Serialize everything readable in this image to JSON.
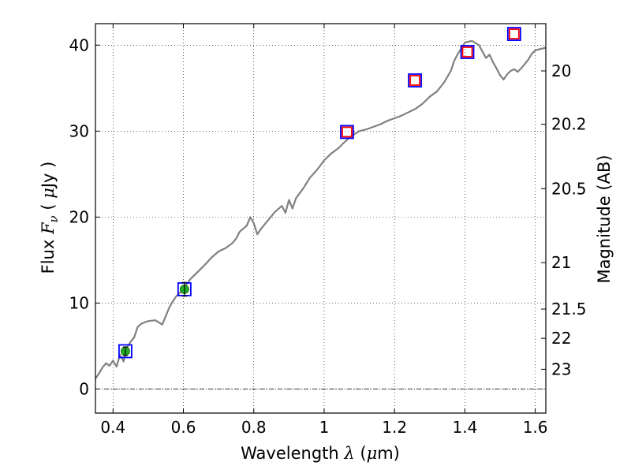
{
  "chart_data": {
    "type": "line",
    "xlabel": "Wavelength  λ (μm)",
    "ylabel": "Flux  F_ν  ( μJy )",
    "y2label": "Magnitude (AB)",
    "xlim": [
      0.35,
      1.63
    ],
    "ylim": [
      -2.8,
      42.5
    ],
    "x_ticks": [
      0.4,
      0.6,
      0.8,
      1.0,
      1.2,
      1.4,
      1.6
    ],
    "x_tick_labels": [
      "0.4",
      "0.6",
      "0.8",
      "1",
      "1.2",
      "1.4",
      "1.6"
    ],
    "y_ticks": [
      0,
      10,
      20,
      30,
      40
    ],
    "y_tick_labels": [
      "0",
      "10",
      "20",
      "30",
      "40"
    ],
    "y2_ticks": [
      {
        "label": "20",
        "flux": 37.0
      },
      {
        "label": "20.2",
        "flux": 30.8
      },
      {
        "label": "20.5",
        "flux": 23.3
      },
      {
        "label": "21",
        "flux": 14.7
      },
      {
        "label": "21.5",
        "flux": 9.3
      },
      {
        "label": "22",
        "flux": 5.9
      },
      {
        "label": "23",
        "flux": 2.3
      }
    ],
    "grid": true,
    "zero_line": true,
    "spectrum": {
      "color": "#808080",
      "x": [
        0.35,
        0.36,
        0.37,
        0.38,
        0.39,
        0.4,
        0.41,
        0.42,
        0.43,
        0.44,
        0.45,
        0.46,
        0.47,
        0.48,
        0.5,
        0.52,
        0.54,
        0.55,
        0.56,
        0.57,
        0.58,
        0.6,
        0.62,
        0.64,
        0.66,
        0.68,
        0.7,
        0.72,
        0.74,
        0.75,
        0.76,
        0.78,
        0.79,
        0.8,
        0.81,
        0.82,
        0.84,
        0.86,
        0.88,
        0.89,
        0.9,
        0.91,
        0.92,
        0.94,
        0.96,
        0.98,
        1.0,
        1.02,
        1.04,
        1.06,
        1.08,
        1.1,
        1.12,
        1.14,
        1.16,
        1.18,
        1.2,
        1.22,
        1.24,
        1.26,
        1.28,
        1.3,
        1.32,
        1.34,
        1.36,
        1.37,
        1.38,
        1.39,
        1.4,
        1.42,
        1.44,
        1.46,
        1.47,
        1.48,
        1.49,
        1.5,
        1.51,
        1.52,
        1.53,
        1.54,
        1.55,
        1.56,
        1.57,
        1.58,
        1.59,
        1.6,
        1.62,
        1.63
      ],
      "y": [
        1.2,
        1.8,
        2.5,
        3.0,
        2.7,
        3.3,
        2.6,
        4.0,
        3.2,
        4.8,
        5.5,
        6.0,
        7.2,
        7.6,
        7.9,
        8.0,
        7.5,
        8.5,
        9.5,
        10.2,
        10.8,
        11.6,
        12.8,
        13.6,
        14.4,
        15.3,
        16.0,
        16.4,
        17.0,
        17.5,
        18.3,
        19.0,
        20.0,
        19.3,
        18.0,
        18.6,
        19.6,
        20.6,
        21.3,
        20.5,
        22.0,
        21.0,
        22.2,
        23.3,
        24.6,
        25.5,
        26.6,
        27.4,
        28.0,
        28.8,
        29.5,
        30.0,
        30.2,
        30.5,
        30.8,
        31.2,
        31.5,
        31.8,
        32.2,
        32.6,
        33.2,
        34.0,
        34.6,
        35.6,
        37.0,
        38.2,
        39.0,
        39.6,
        40.3,
        40.5,
        40.0,
        38.5,
        38.9,
        38.0,
        37.3,
        36.5,
        36.0,
        36.6,
        37.0,
        37.2,
        36.9,
        37.3,
        37.8,
        38.3,
        39.0,
        39.4,
        39.6,
        39.7
      ]
    },
    "series": [
      {
        "name": "",
        "marker": "square-outline",
        "color": "#0000ff",
        "x": [
          0.435,
          0.603,
          1.065,
          1.258,
          1.407,
          1.54
        ],
        "y": [
          4.4,
          11.6,
          29.9,
          35.9,
          39.2,
          41.3
        ]
      },
      {
        "name": "",
        "marker": "square-outline",
        "color": "#ff0000",
        "x": [
          1.065,
          1.258,
          1.407,
          1.54
        ],
        "y": [
          29.9,
          35.9,
          39.2,
          41.3
        ]
      },
      {
        "name": "",
        "marker": "circle-errorbar",
        "color": "#22aa22",
        "x": [
          0.435,
          0.603
        ],
        "y": [
          4.4,
          11.6
        ],
        "yerr": [
          0.5,
          0.8
        ]
      }
    ]
  }
}
